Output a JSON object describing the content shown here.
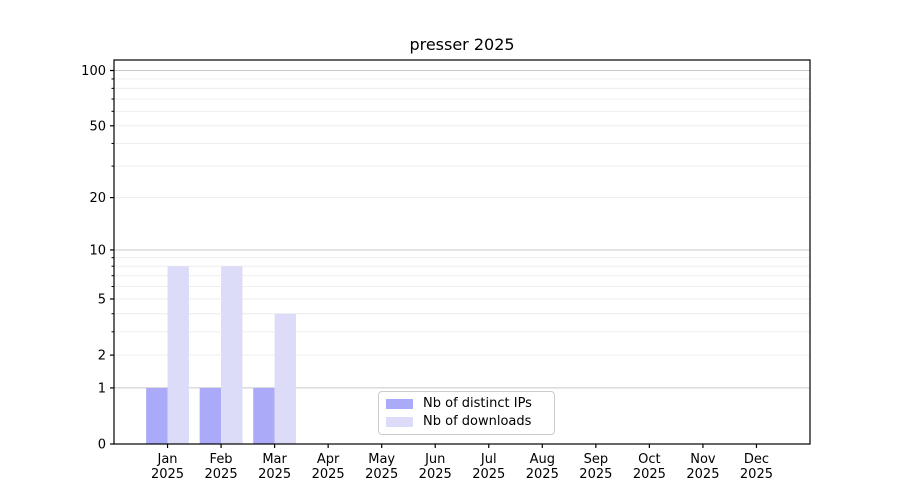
{
  "chart_data": {
    "type": "bar",
    "title": "presser 2025",
    "categories": [
      "Jan",
      "Feb",
      "Mar",
      "Apr",
      "May",
      "Jun",
      "Jul",
      "Aug",
      "Sep",
      "Oct",
      "Nov",
      "Dec"
    ],
    "xtick_year_line": "2025",
    "series": [
      {
        "name": "Nb of distinct IPs",
        "color": "#aaaaf8",
        "values": [
          1,
          1,
          1,
          0,
          0,
          0,
          0,
          0,
          0,
          0,
          0,
          0
        ]
      },
      {
        "name": "Nb of downloads",
        "color": "#dcdcf8",
        "values": [
          8,
          8,
          4,
          0,
          0,
          0,
          0,
          0,
          0,
          0,
          0,
          0
        ]
      }
    ],
    "xlabel": "",
    "ylabel": "",
    "yscale": "log1p",
    "ylim": [
      0,
      114
    ],
    "yticks_labeled": [
      0,
      1,
      2,
      5,
      10,
      20,
      50,
      100
    ],
    "yticks_major": [
      1,
      10,
      100
    ],
    "yticks_minor": [
      2,
      3,
      4,
      5,
      6,
      7,
      8,
      9,
      20,
      30,
      40,
      50,
      60,
      70,
      80,
      90
    ],
    "grid": {
      "major_color": "#c8c8c8",
      "minor_color": "#ececec",
      "on": true
    },
    "spine_color": "#000000",
    "legend": {
      "position": "lower center",
      "items": [
        "Nb of distinct IPs",
        "Nb of downloads"
      ]
    }
  }
}
